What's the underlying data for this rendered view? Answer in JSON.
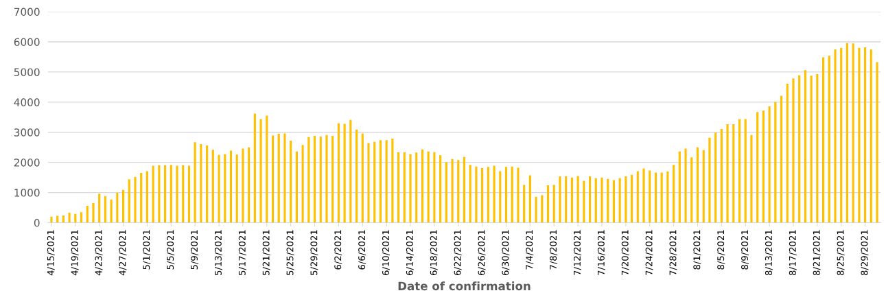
{
  "chart_data": {
    "type": "bar",
    "xlabel": "Date of confirmation",
    "categories": [
      "4/15/2021",
      null,
      null,
      null,
      "4/19/2021",
      null,
      null,
      null,
      "4/23/2021",
      null,
      null,
      null,
      "4/27/2021",
      null,
      null,
      null,
      "5/1/2021",
      null,
      null,
      null,
      "5/5/2021",
      null,
      null,
      null,
      "5/9/2021",
      null,
      null,
      null,
      "5/13/2021",
      null,
      null,
      null,
      "5/17/2021",
      null,
      null,
      null,
      "5/21/2021",
      null,
      null,
      null,
      "5/25/2021",
      null,
      null,
      null,
      "5/29/2021",
      null,
      null,
      null,
      "6/2/2021",
      null,
      null,
      null,
      "6/6/2021",
      null,
      null,
      null,
      "6/10/2021",
      null,
      null,
      null,
      "6/14/2021",
      null,
      null,
      null,
      "6/18/2021",
      null,
      null,
      null,
      "6/22/2021",
      null,
      null,
      null,
      "6/26/2021",
      null,
      null,
      null,
      "6/30/2021",
      null,
      null,
      null,
      "7/4/2021",
      null,
      null,
      null,
      "7/8/2021",
      null,
      null,
      null,
      "7/12/2021",
      null,
      null,
      null,
      "7/16/2021",
      null,
      null,
      null,
      "7/20/2021",
      null,
      null,
      null,
      "7/24/2021",
      null,
      null,
      null,
      "7/28/2021",
      null,
      null,
      null,
      "8/1/2021",
      null,
      null,
      null,
      "8/5/2021",
      null,
      null,
      null,
      "8/9/2021",
      null,
      null,
      null,
      "8/13/2021",
      null,
      null,
      null,
      "8/17/2021",
      null,
      null,
      null,
      "8/21/2021",
      null,
      null,
      null,
      "8/25/2021",
      null,
      null,
      null,
      "8/29/2021",
      null,
      null
    ],
    "values": [
      200,
      230,
      240,
      330,
      290,
      350,
      560,
      650,
      960,
      880,
      770,
      990,
      1090,
      1440,
      1520,
      1650,
      1710,
      1890,
      1910,
      1910,
      1920,
      1890,
      1910,
      1890,
      2670,
      2610,
      2560,
      2420,
      2250,
      2270,
      2390,
      2260,
      2460,
      2500,
      3620,
      3440,
      3550,
      2890,
      2950,
      2960,
      2720,
      2360,
      2580,
      2840,
      2880,
      2860,
      2910,
      2880,
      3300,
      3280,
      3410,
      3090,
      2960,
      2640,
      2680,
      2740,
      2740,
      2790,
      2340,
      2340,
      2270,
      2330,
      2430,
      2360,
      2340,
      2240,
      2010,
      2110,
      2080,
      2180,
      1920,
      1860,
      1810,
      1850,
      1890,
      1710,
      1850,
      1860,
      1820,
      1250,
      1570,
      860,
      910,
      1240,
      1250,
      1540,
      1540,
      1500,
      1550,
      1390,
      1540,
      1470,
      1500,
      1450,
      1410,
      1480,
      1540,
      1590,
      1710,
      1800,
      1730,
      1660,
      1660,
      1700,
      1920,
      2360,
      2460,
      2170,
      2500,
      2410,
      2820,
      2990,
      3110,
      3270,
      3270,
      3440,
      3440,
      2910,
      3670,
      3720,
      3860,
      4000,
      4210,
      4610,
      4790,
      4890,
      5060,
      4880,
      4930,
      5490,
      5540,
      5750,
      5800,
      5960,
      5950,
      5800,
      5820,
      5750,
      5330
    ],
    "color": "#ffc000",
    "ylim": [
      0,
      7000
    ],
    "yticks": [
      0,
      1000,
      2000,
      3000,
      4000,
      5000,
      6000,
      7000
    ],
    "grid": "y",
    "legend": false
  }
}
